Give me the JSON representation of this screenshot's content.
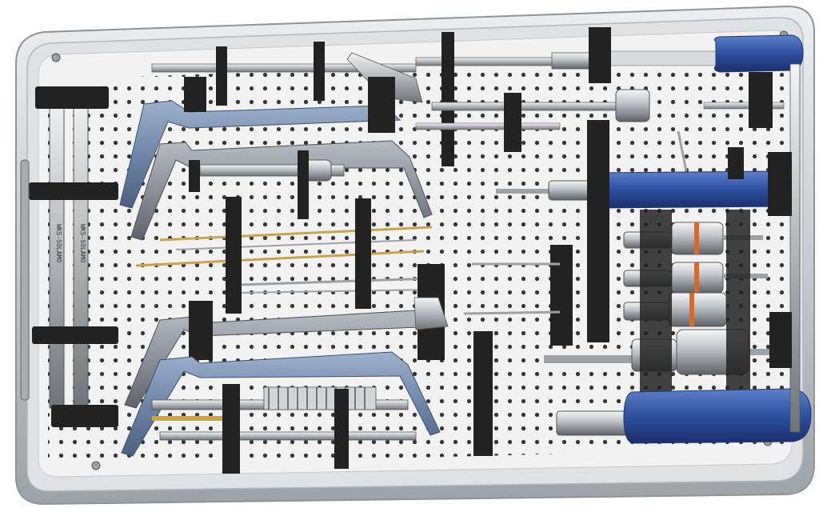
{
  "image": {
    "subject": "surgical-instrument-tray",
    "colors": {
      "background": "#ffffff",
      "tray_rim": "#d9dbdd",
      "tray_rim_dark": "#8e9397",
      "pegboard": "#f2f2f2",
      "hole": "#2b2b2b",
      "bracket": "#222222",
      "steel": "#c4c8cc",
      "steel_dark": "#7a7f84",
      "handle_blue": "#2e4f9e",
      "handle_blue_dark": "#1e3577",
      "gray_handle": "#8b9099",
      "blue_gray_handle": "#6f86a8",
      "orange_band": "#d9692a",
      "brass": "#c9a44a"
    },
    "marks": {
      "left_rod_1": "WKS-SOLAMO",
      "left_rod_2": "WKS-SOLAMO"
    }
  }
}
